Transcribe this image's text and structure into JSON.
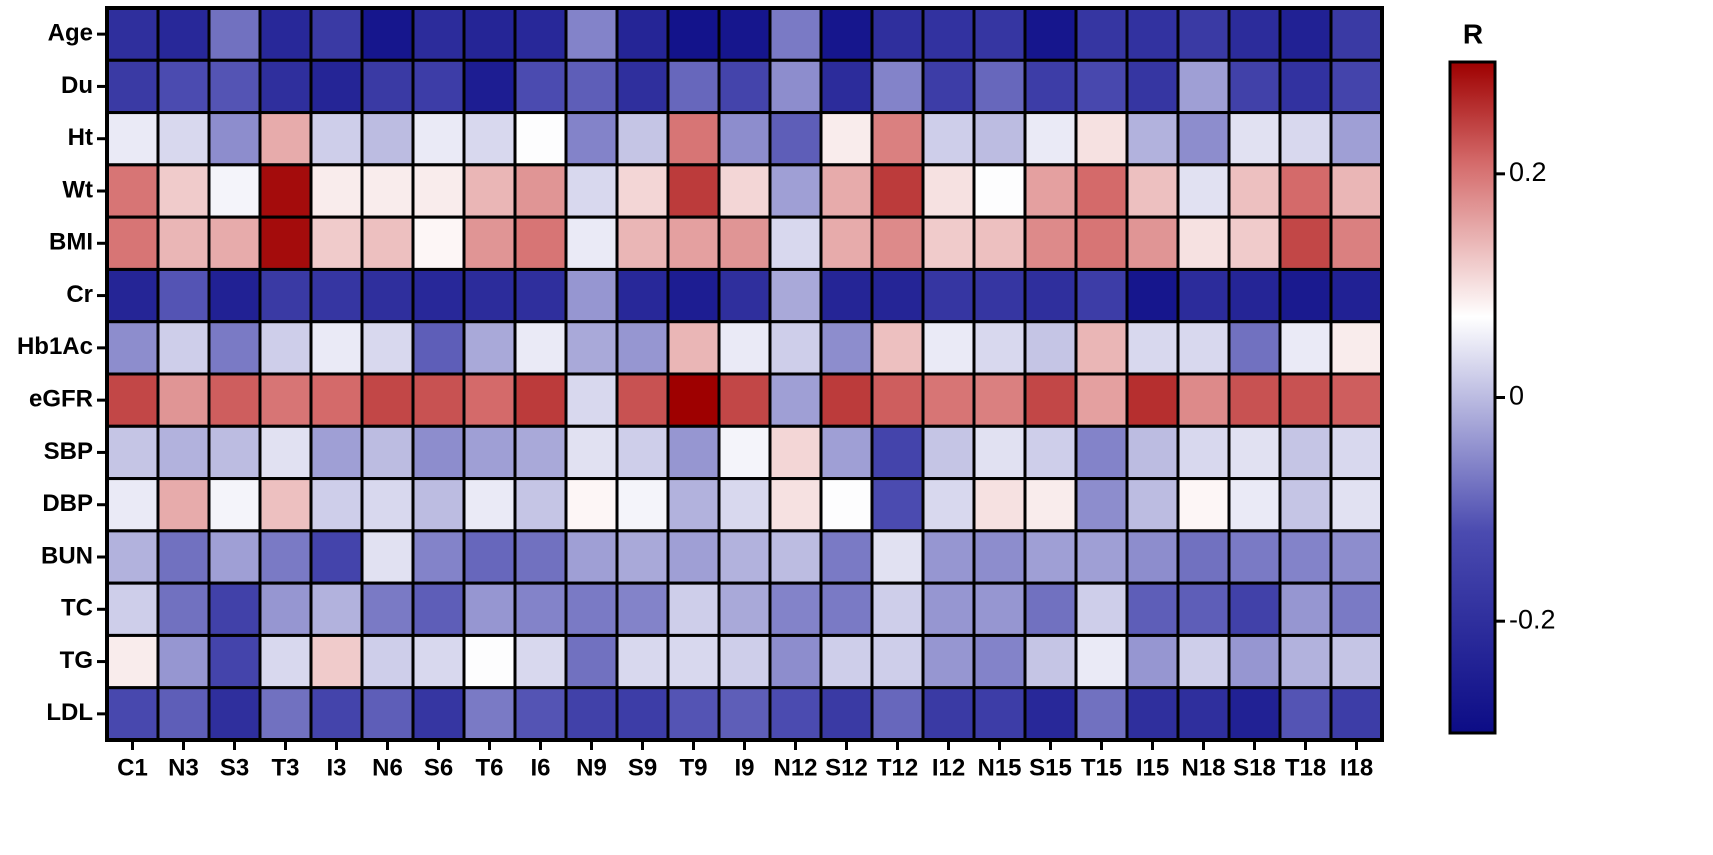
{
  "chart_data": {
    "type": "heatmap",
    "x": [
      "C1",
      "N3",
      "S3",
      "T3",
      "I3",
      "N6",
      "S6",
      "T6",
      "I6",
      "N9",
      "S9",
      "T9",
      "I9",
      "N12",
      "S12",
      "T12",
      "I12",
      "N15",
      "S15",
      "T15",
      "I15",
      "N18",
      "S18",
      "T18",
      "I18"
    ],
    "y": [
      "Age",
      "Du",
      "Ht",
      "Wt",
      "BMI",
      "Cr",
      "Hb1Ac",
      "eGFR",
      "SBP",
      "DBP",
      "BUN",
      "TC",
      "TG",
      "LDL"
    ],
    "values": [
      [
        -0.2,
        -0.22,
        -0.08,
        -0.22,
        -0.17,
        -0.27,
        -0.21,
        -0.23,
        -0.22,
        -0.06,
        -0.23,
        -0.28,
        -0.27,
        -0.07,
        -0.27,
        -0.2,
        -0.19,
        -0.18,
        -0.27,
        -0.18,
        -0.19,
        -0.17,
        -0.21,
        -0.24,
        -0.17
      ],
      [
        -0.17,
        -0.12,
        -0.11,
        -0.2,
        -0.23,
        -0.17,
        -0.16,
        -0.25,
        -0.12,
        -0.1,
        -0.2,
        -0.09,
        -0.14,
        -0.05,
        -0.21,
        -0.06,
        -0.16,
        -0.09,
        -0.16,
        -0.13,
        -0.18,
        -0.03,
        -0.15,
        -0.19,
        -0.14
      ],
      [
        0.05,
        0.03,
        -0.05,
        0.15,
        0.02,
        0,
        0.05,
        0.03,
        0.07,
        -0.06,
        0.01,
        0.2,
        -0.05,
        -0.1,
        0.09,
        0.19,
        0.02,
        0,
        0.05,
        0.1,
        -0.01,
        -0.05,
        0.04,
        0.03,
        -0.03
      ],
      [
        0.2,
        0.12,
        0.06,
        0.29,
        0.09,
        0.09,
        0.09,
        0.14,
        0.17,
        0.03,
        0.11,
        0.25,
        0.11,
        -0.03,
        0.15,
        0.25,
        0.1,
        0.07,
        0.16,
        0.21,
        0.13,
        0.04,
        0.13,
        0.21,
        0.14
      ],
      [
        0.2,
        0.14,
        0.15,
        0.29,
        0.12,
        0.13,
        0.08,
        0.17,
        0.2,
        0.05,
        0.14,
        0.16,
        0.17,
        0.03,
        0.15,
        0.18,
        0.12,
        0.13,
        0.18,
        0.2,
        0.17,
        0.1,
        0.12,
        0.24,
        0.19
      ],
      [
        -0.23,
        -0.11,
        -0.24,
        -0.17,
        -0.18,
        -0.2,
        -0.22,
        -0.21,
        -0.2,
        -0.04,
        -0.22,
        -0.25,
        -0.2,
        -0.02,
        -0.23,
        -0.23,
        -0.18,
        -0.18,
        -0.2,
        -0.16,
        -0.27,
        -0.21,
        -0.23,
        -0.26,
        -0.24
      ],
      [
        -0.05,
        0.02,
        -0.07,
        0.02,
        0.05,
        0.03,
        -0.1,
        -0.02,
        0.05,
        -0.02,
        -0.04,
        0.14,
        0.05,
        0.02,
        -0.05,
        0.13,
        0.05,
        0.03,
        0.01,
        0.14,
        0.03,
        0.03,
        -0.08,
        0.05,
        0.09
      ],
      [
        0.24,
        0.17,
        0.22,
        0.2,
        0.21,
        0.24,
        0.23,
        0.21,
        0.25,
        0.03,
        0.23,
        0.3,
        0.24,
        -0.03,
        0.25,
        0.22,
        0.2,
        0.19,
        0.24,
        0.16,
        0.26,
        0.18,
        0.23,
        0.23,
        0.22
      ],
      [
        0.01,
        -0.01,
        0,
        0.04,
        -0.03,
        0,
        -0.05,
        -0.03,
        -0.02,
        0.04,
        0.02,
        -0.04,
        0.06,
        0.11,
        -0.03,
        -0.14,
        0.01,
        0.04,
        0.02,
        -0.06,
        0,
        0.03,
        0.04,
        0.01,
        0.03
      ],
      [
        0.05,
        0.15,
        0.06,
        0.13,
        0.02,
        0.03,
        0,
        0.05,
        0.01,
        0.08,
        0.06,
        -0.01,
        0.03,
        0.1,
        0.07,
        -0.12,
        0.03,
        0.1,
        0.09,
        -0.05,
        0,
        0.08,
        0.05,
        0.01,
        0.04
      ],
      [
        -0.01,
        -0.08,
        -0.03,
        -0.07,
        -0.14,
        0.04,
        -0.06,
        -0.09,
        -0.08,
        -0.03,
        -0.02,
        -0.03,
        -0.01,
        0,
        -0.07,
        0.04,
        -0.04,
        -0.05,
        -0.03,
        -0.03,
        -0.05,
        -0.08,
        -0.07,
        -0.06,
        -0.05
      ],
      [
        0.02,
        -0.08,
        -0.15,
        -0.04,
        -0.01,
        -0.07,
        -0.1,
        -0.04,
        -0.06,
        -0.07,
        -0.06,
        0.02,
        -0.02,
        -0.06,
        -0.07,
        0.02,
        -0.04,
        -0.04,
        -0.08,
        0.02,
        -0.1,
        -0.1,
        -0.15,
        -0.04,
        -0.07
      ],
      [
        0.09,
        -0.04,
        -0.14,
        0.03,
        0.12,
        0.02,
        0.03,
        0.07,
        0.03,
        -0.08,
        0.03,
        0.03,
        0.02,
        -0.05,
        0.02,
        0.02,
        -0.04,
        -0.06,
        0.01,
        0.05,
        -0.04,
        0.02,
        -0.04,
        -0.01,
        0.01
      ],
      [
        -0.13,
        -0.1,
        -0.2,
        -0.08,
        -0.14,
        -0.1,
        -0.18,
        -0.07,
        -0.11,
        -0.15,
        -0.16,
        -0.11,
        -0.1,
        -0.12,
        -0.17,
        -0.09,
        -0.17,
        -0.16,
        -0.22,
        -0.08,
        -0.2,
        -0.2,
        -0.24,
        -0.11,
        -0.16
      ]
    ],
    "colorbar_label": "R",
    "clim": [
      -0.3,
      0.3
    ],
    "cticks": [
      -0.2,
      0,
      0.2
    ],
    "colorscale": [
      [
        0,
        "#0c0c86"
      ],
      [
        0.3,
        "#4b4bb0"
      ],
      [
        0.62,
        "#ffffff"
      ],
      [
        0.85,
        "#d46a6a"
      ],
      [
        1,
        "#9e0000"
      ]
    ]
  }
}
